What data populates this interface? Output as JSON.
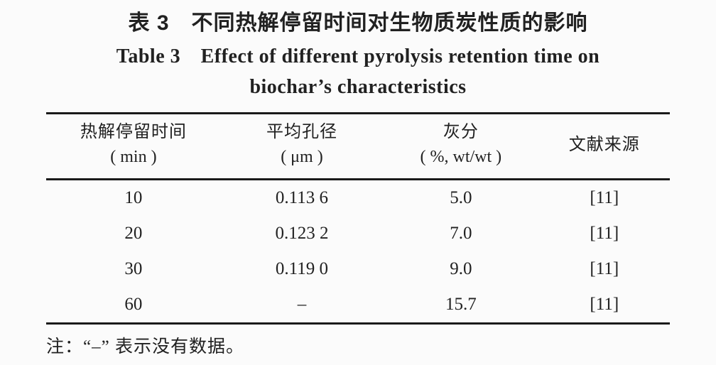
{
  "page": {
    "background_color": "#fbfbfb",
    "ink_color": "#212121",
    "rule_color": "#1a1a1a"
  },
  "caption": {
    "zh": "表 3　不同热解停留时间对生物质炭性质的影响",
    "en_line1": "Table 3　Effect of different pyrolysis retention time on",
    "en_line2": "biochar’s characteristics"
  },
  "table": {
    "columns": [
      {
        "name": "热解停留时间",
        "unit": "( min )"
      },
      {
        "name": "平均孔径",
        "unit": "( μm )"
      },
      {
        "name": "灰分",
        "unit": "( %, wt/wt )"
      },
      {
        "name": "文献来源",
        "unit": ""
      }
    ],
    "rows": [
      {
        "time": "10",
        "pore": "0.113 6",
        "ash": "5.0",
        "ref": "[11]"
      },
      {
        "time": "20",
        "pore": "0.123 2",
        "ash": "7.0",
        "ref": "[11]"
      },
      {
        "time": "30",
        "pore": "0.119 0",
        "ash": "9.0",
        "ref": "[11]"
      },
      {
        "time": "60",
        "pore": "–",
        "ash": "15.7",
        "ref": "[11]"
      }
    ]
  },
  "footnote": {
    "text": "注：“–” 表示没有数据。"
  }
}
